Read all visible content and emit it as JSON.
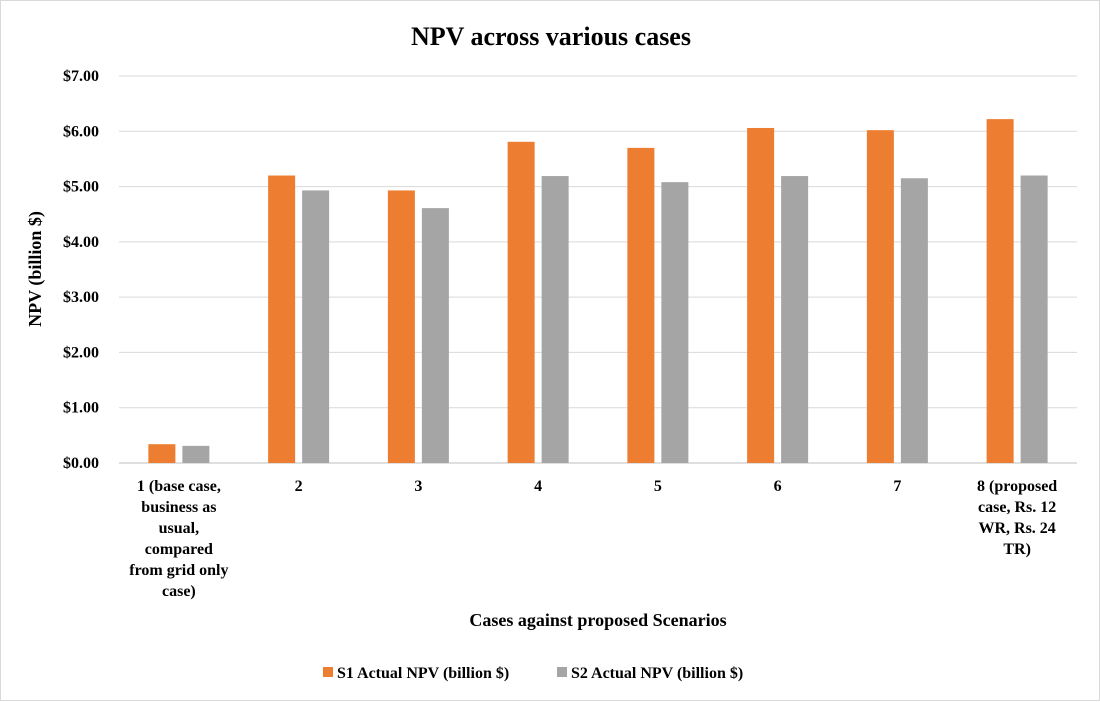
{
  "chart_data": {
    "type": "bar",
    "title": "NPV across various cases",
    "xlabel": "Cases against proposed Scenarios",
    "ylabel": "NPV (billion $)",
    "ylim": [
      0,
      7
    ],
    "y_ticks": [
      "$0.00",
      "$1.00",
      "$2.00",
      "$3.00",
      "$4.00",
      "$5.00",
      "$6.00",
      "$7.00"
    ],
    "categories": [
      "1 (base case, business as usual, compared from grid only case)",
      "2",
      "3",
      "4",
      "5",
      "6",
      "7",
      "8 (proposed case, Rs. 12 WR, Rs. 24 TR)"
    ],
    "category_lines": [
      [
        "1 (base case,",
        "business as",
        "usual,",
        "compared",
        "from grid only",
        "case)"
      ],
      [
        "2"
      ],
      [
        "3"
      ],
      [
        "4"
      ],
      [
        "5"
      ],
      [
        "6"
      ],
      [
        "7"
      ],
      [
        "8 (proposed",
        "case, Rs. 12",
        "WR, Rs. 24",
        "TR)"
      ]
    ],
    "series": [
      {
        "name": "S1 Actual NPV (billion $)",
        "color": "#ed7d31",
        "values": [
          0.34,
          5.2,
          4.93,
          5.81,
          5.7,
          6.06,
          6.02,
          6.22
        ]
      },
      {
        "name": "S2 Actual NPV (billion $)",
        "color": "#a5a5a5",
        "values": [
          0.31,
          4.93,
          4.61,
          5.19,
          5.08,
          5.19,
          5.15,
          5.2
        ]
      }
    ],
    "grid": true,
    "legend_position": "bottom"
  }
}
